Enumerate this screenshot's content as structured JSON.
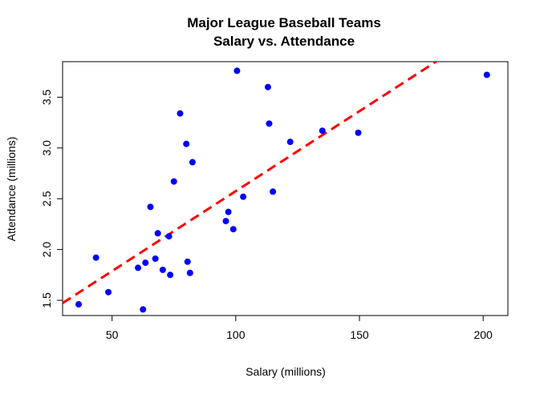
{
  "chart_data": {
    "type": "scatter",
    "title": "Major League Baseball Teams",
    "subtitle": "Salary vs. Attendance",
    "xlabel": "Salary (millions)",
    "ylabel": "Attendance (millions)",
    "xlim": [
      30,
      210
    ],
    "ylim": [
      1.35,
      3.85
    ],
    "xticks": [
      50,
      100,
      150,
      200
    ],
    "yticks": [
      1.5,
      2.0,
      2.5,
      3.0,
      3.5
    ],
    "grid": false,
    "point_color": "#0000ff",
    "fit_line_color": "#ff0000",
    "points": [
      {
        "x": 36.5,
        "y": 1.46
      },
      {
        "x": 43.5,
        "y": 1.92
      },
      {
        "x": 48.5,
        "y": 1.58
      },
      {
        "x": 60.5,
        "y": 1.82
      },
      {
        "x": 62.5,
        "y": 1.41
      },
      {
        "x": 63.5,
        "y": 1.87
      },
      {
        "x": 65.5,
        "y": 2.42
      },
      {
        "x": 67.5,
        "y": 1.91
      },
      {
        "x": 68.5,
        "y": 2.16
      },
      {
        "x": 70.5,
        "y": 1.8
      },
      {
        "x": 73.0,
        "y": 2.13
      },
      {
        "x": 73.5,
        "y": 1.75
      },
      {
        "x": 75.0,
        "y": 2.67
      },
      {
        "x": 77.5,
        "y": 3.34
      },
      {
        "x": 80.0,
        "y": 3.04
      },
      {
        "x": 80.5,
        "y": 1.88
      },
      {
        "x": 81.5,
        "y": 1.77
      },
      {
        "x": 82.5,
        "y": 2.86
      },
      {
        "x": 96.0,
        "y": 2.28
      },
      {
        "x": 97.0,
        "y": 2.37
      },
      {
        "x": 99.0,
        "y": 2.2
      },
      {
        "x": 100.5,
        "y": 3.76
      },
      {
        "x": 103.0,
        "y": 2.52
      },
      {
        "x": 113.0,
        "y": 3.6
      },
      {
        "x": 113.5,
        "y": 3.24
      },
      {
        "x": 115.0,
        "y": 2.57
      },
      {
        "x": 122.0,
        "y": 3.06
      },
      {
        "x": 135.0,
        "y": 3.17
      },
      {
        "x": 149.5,
        "y": 3.15
      },
      {
        "x": 201.5,
        "y": 3.72
      }
    ],
    "fit_line": {
      "intercept": 1.0,
      "slope": 0.01575
    }
  }
}
